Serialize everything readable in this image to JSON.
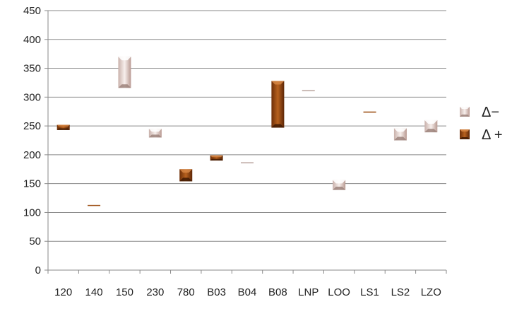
{
  "chart_data": {
    "type": "candlestick",
    "title": "",
    "xlabel": "",
    "ylabel": "",
    "ylim": [
      0,
      450
    ],
    "y_ticks": [
      0,
      50,
      100,
      150,
      200,
      250,
      300,
      350,
      400,
      450
    ],
    "grid": true,
    "legend_position": "right",
    "categories": [
      "120",
      "140",
      "150",
      "230",
      "780",
      "B03",
      "B04",
      "B08",
      "LNP",
      "LOO",
      "LS1",
      "LS2",
      "LZO"
    ],
    "series": [
      {
        "name": "Δ−",
        "color": "#e8d8d4"
      },
      {
        "name": "Δ +",
        "color": "#9a4a14"
      }
    ],
    "boxes": [
      {
        "category": "120",
        "low": 243,
        "high": 252,
        "direction": "up"
      },
      {
        "category": "140",
        "low": 112,
        "high": 113,
        "direction": "up"
      },
      {
        "category": "150",
        "low": 316,
        "high": 370,
        "direction": "down"
      },
      {
        "category": "230",
        "low": 230,
        "high": 245,
        "direction": "down"
      },
      {
        "category": "780",
        "low": 154,
        "high": 175,
        "direction": "up"
      },
      {
        "category": "B03",
        "low": 190,
        "high": 199,
        "direction": "up"
      },
      {
        "category": "B04",
        "low": 186,
        "high": 187,
        "direction": "down"
      },
      {
        "category": "B08",
        "low": 247,
        "high": 328,
        "direction": "up"
      },
      {
        "category": "LNP",
        "low": 311,
        "high": 312,
        "direction": "down"
      },
      {
        "category": "LOO",
        "low": 139,
        "high": 156,
        "direction": "down"
      },
      {
        "category": "LS1",
        "low": 273,
        "high": 275,
        "direction": "up"
      },
      {
        "category": "LS2",
        "low": 225,
        "high": 246,
        "direction": "down"
      },
      {
        "category": "LZO",
        "low": 239,
        "high": 260,
        "direction": "down"
      }
    ]
  }
}
